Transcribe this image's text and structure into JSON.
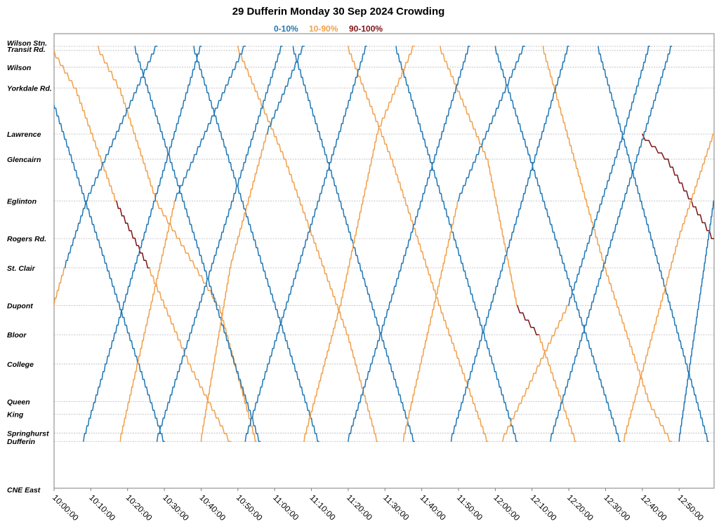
{
  "chart_data": {
    "type": "line",
    "title": "29 Dufferin Monday 30 Sep 2024 Crowding",
    "legend": [
      {
        "label": "0-10%",
        "color": "#1f77b4"
      },
      {
        "label": "10-90%",
        "color": "#f0a04b"
      },
      {
        "label": "90-100%",
        "color": "#7b1416"
      }
    ],
    "legend_placement": "top-center",
    "x_axis": {
      "range": [
        "10:00:00",
        "12:59:30"
      ],
      "ticks": [
        "10:00:00",
        "10:10:00",
        "10:20:00",
        "10:30:00",
        "10:40:00",
        "10:50:00",
        "11:00:00",
        "11:10:00",
        "11:20:00",
        "11:30:00",
        "11:40:00",
        "11:50:00",
        "12:00:00",
        "12:10:00",
        "12:20:00",
        "12:30:00",
        "12:40:00",
        "12:50:00"
      ]
    },
    "y_axis": {
      "kind": "distance along route (stops)",
      "grid": true,
      "stops": [
        {
          "name": "Wilson Stn.",
          "pos": 0.0
        },
        {
          "name": "Transit Rd.",
          "pos": 0.1
        },
        {
          "name": "Wilson",
          "pos": 0.5
        },
        {
          "name": "Yorkdale Rd.",
          "pos": 1.0
        },
        {
          "name": "Lawrence",
          "pos": 2.1
        },
        {
          "name": "Glencairn",
          "pos": 2.7
        },
        {
          "name": "Eglinton",
          "pos": 3.7
        },
        {
          "name": "Rogers Rd.",
          "pos": 4.6
        },
        {
          "name": "St. Clair",
          "pos": 5.3
        },
        {
          "name": "Dupont",
          "pos": 6.2
        },
        {
          "name": "Bloor",
          "pos": 6.9
        },
        {
          "name": "College",
          "pos": 7.6
        },
        {
          "name": "Queen",
          "pos": 8.5
        },
        {
          "name": "King",
          "pos": 8.8
        },
        {
          "name": "Springhurst",
          "pos": 9.25
        },
        {
          "name": "Dufferin",
          "pos": 9.45
        },
        {
          "name": "CNE East",
          "pos": 10.6
        }
      ]
    },
    "trips": [
      {
        "direction": "southbound",
        "segments": [
          {
            "t": "09:55:00",
            "stop": "Wilson Stn.",
            "crowd": "0-10%"
          },
          {
            "t": "10:30:00",
            "stop": "Dufferin",
            "crowd": "0-10%"
          }
        ]
      },
      {
        "direction": "southbound",
        "segments": [
          {
            "t": "10:00:00",
            "stop": "Transit Rd.",
            "crowd": "0-10%"
          },
          {
            "t": "10:06:00",
            "stop": "Yorkdale Rd.",
            "crowd": "10-90%"
          },
          {
            "t": "10:17:00",
            "stop": "Eglinton",
            "crowd": "10-90%"
          },
          {
            "t": "10:26:00",
            "stop": "St. Clair",
            "crowd": "90-100%"
          },
          {
            "t": "10:37:00",
            "stop": "College",
            "crowd": "10-90%"
          },
          {
            "t": "10:48:00",
            "stop": "Dufferin",
            "crowd": "10-90%"
          }
        ]
      },
      {
        "direction": "southbound",
        "segments": [
          {
            "t": "10:12:00",
            "stop": "Wilson Stn.",
            "crowd": "0-10%"
          },
          {
            "t": "10:18:00",
            "stop": "Yorkdale Rd.",
            "crowd": "10-90%"
          },
          {
            "t": "10:28:00",
            "stop": "Eglinton",
            "crowd": "10-90%"
          },
          {
            "t": "10:45:00",
            "stop": "Dupont",
            "crowd": "10-90%"
          },
          {
            "t": "10:55:00",
            "stop": "Dufferin",
            "crowd": "10-90%"
          }
        ]
      },
      {
        "direction": "southbound",
        "segments": [
          {
            "t": "10:22:00",
            "stop": "Wilson Stn.",
            "crowd": "0-10%"
          },
          {
            "t": "10:56:00",
            "stop": "Dufferin",
            "crowd": "0-10%"
          }
        ]
      },
      {
        "direction": "southbound",
        "segments": [
          {
            "t": "10:38:00",
            "stop": "Wilson Stn.",
            "crowd": "0-10%"
          },
          {
            "t": "11:12:00",
            "stop": "Dufferin",
            "crowd": "0-10%"
          }
        ]
      },
      {
        "direction": "southbound",
        "segments": [
          {
            "t": "10:50:00",
            "stop": "Wilson Stn.",
            "crowd": "0-10%"
          },
          {
            "t": "11:03:00",
            "stop": "Glencairn",
            "crowd": "10-90%"
          },
          {
            "t": "11:20:00",
            "stop": "Bloor",
            "crowd": "10-90%"
          },
          {
            "t": "11:28:00",
            "stop": "Dufferin",
            "crowd": "10-90%"
          }
        ]
      },
      {
        "direction": "southbound",
        "segments": [
          {
            "t": "11:05:00",
            "stop": "Wilson Stn.",
            "crowd": "0-10%"
          },
          {
            "t": "11:38:00",
            "stop": "Dufferin",
            "crowd": "0-10%"
          }
        ]
      },
      {
        "direction": "southbound",
        "segments": [
          {
            "t": "11:20:00",
            "stop": "Wilson Stn.",
            "crowd": "0-10%"
          },
          {
            "t": "11:32:00",
            "stop": "Glencairn",
            "crowd": "10-90%"
          },
          {
            "t": "11:45:00",
            "stop": "Dupont",
            "crowd": "10-90%"
          },
          {
            "t": "11:58:00",
            "stop": "Dufferin",
            "crowd": "10-90%"
          }
        ]
      },
      {
        "direction": "southbound",
        "segments": [
          {
            "t": "11:33:00",
            "stop": "Wilson Stn.",
            "crowd": "0-10%"
          },
          {
            "t": "12:06:00",
            "stop": "Dufferin",
            "crowd": "0-10%"
          }
        ]
      },
      {
        "direction": "southbound",
        "segments": [
          {
            "t": "11:45:00",
            "stop": "Wilson Stn.",
            "crowd": "0-10%"
          },
          {
            "t": "11:58:00",
            "stop": "Glencairn",
            "crowd": "10-90%"
          },
          {
            "t": "12:06:00",
            "stop": "Dupont",
            "crowd": "10-90%"
          },
          {
            "t": "12:12:00",
            "stop": "Bloor",
            "crowd": "90-100%"
          },
          {
            "t": "12:22:00",
            "stop": "Dufferin",
            "crowd": "10-90%"
          }
        ]
      },
      {
        "direction": "southbound",
        "segments": [
          {
            "t": "12:00:00",
            "stop": "Wilson Stn.",
            "crowd": "0-10%"
          },
          {
            "t": "12:34:00",
            "stop": "Dufferin",
            "crowd": "0-10%"
          }
        ]
      },
      {
        "direction": "southbound",
        "segments": [
          {
            "t": "12:13:00",
            "stop": "Wilson Stn.",
            "crowd": "0-10%"
          },
          {
            "t": "12:30:00",
            "stop": "St. Clair",
            "crowd": "10-90%"
          },
          {
            "t": "12:42:00",
            "stop": "Queen",
            "crowd": "10-90%"
          },
          {
            "t": "12:48:00",
            "stop": "Dufferin",
            "crowd": "10-90%"
          }
        ]
      },
      {
        "direction": "southbound",
        "segments": [
          {
            "t": "12:28:00",
            "stop": "Wilson Stn.",
            "crowd": "0-10%"
          },
          {
            "t": "12:58:00",
            "stop": "Dufferin",
            "crowd": "0-10%"
          }
        ]
      },
      {
        "direction": "southbound",
        "segments": [
          {
            "t": "12:40:00",
            "stop": "Lawrence",
            "crowd": "0-10%"
          },
          {
            "t": "12:47:00",
            "stop": "Glencairn",
            "crowd": "90-100%"
          },
          {
            "t": "12:59:30",
            "stop": "Rogers Rd.",
            "crowd": "90-100%"
          }
        ]
      },
      {
        "direction": "northbound",
        "segments": [
          {
            "t": "10:00:00",
            "stop": "Dupont",
            "crowd": "10-90%"
          },
          {
            "t": "10:03:00",
            "stop": "St. Clair",
            "crowd": "10-90%"
          },
          {
            "t": "10:09:00",
            "stop": "Eglinton",
            "crowd": "0-10%"
          },
          {
            "t": "10:28:00",
            "stop": "Wilson Stn.",
            "crowd": "0-10%"
          }
        ]
      },
      {
        "direction": "northbound",
        "segments": [
          {
            "t": "10:08:00",
            "stop": "Dufferin",
            "crowd": "0-10%"
          },
          {
            "t": "10:40:00",
            "stop": "Wilson Stn.",
            "crowd": "0-10%"
          }
        ]
      },
      {
        "direction": "northbound",
        "segments": [
          {
            "t": "10:18:00",
            "stop": "Dufferin",
            "crowd": "10-90%"
          },
          {
            "t": "10:33:00",
            "stop": "Eglinton",
            "crowd": "10-90%"
          },
          {
            "t": "10:52:00",
            "stop": "Wilson Stn.",
            "crowd": "0-10%"
          }
        ]
      },
      {
        "direction": "northbound",
        "segments": [
          {
            "t": "10:28:00",
            "stop": "Dufferin",
            "crowd": "0-10%"
          },
          {
            "t": "11:02:00",
            "stop": "Wilson Stn.",
            "crowd": "0-10%"
          }
        ]
      },
      {
        "direction": "northbound",
        "segments": [
          {
            "t": "10:40:00",
            "stop": "Dufferin",
            "crowd": "10-90%"
          },
          {
            "t": "10:48:00",
            "stop": "St. Clair",
            "crowd": "10-90%"
          },
          {
            "t": "10:58:00",
            "stop": "Lawrence",
            "crowd": "10-90%"
          },
          {
            "t": "11:08:00",
            "stop": "Wilson Stn.",
            "crowd": "0-10%"
          }
        ]
      },
      {
        "direction": "northbound",
        "segments": [
          {
            "t": "10:52:00",
            "stop": "Dufferin",
            "crowd": "0-10%"
          },
          {
            "t": "11:25:00",
            "stop": "Wilson Stn.",
            "crowd": "0-10%"
          }
        ]
      },
      {
        "direction": "northbound",
        "segments": [
          {
            "t": "11:08:00",
            "stop": "Dufferin",
            "crowd": "10-90%"
          },
          {
            "t": "11:18:00",
            "stop": "Dupont",
            "crowd": "10-90%"
          },
          {
            "t": "11:28:00",
            "stop": "Lawrence",
            "crowd": "10-90%"
          },
          {
            "t": "11:38:00",
            "stop": "Wilson Stn.",
            "crowd": "10-90%"
          }
        ]
      },
      {
        "direction": "northbound",
        "segments": [
          {
            "t": "11:20:00",
            "stop": "Dufferin",
            "crowd": "0-10%"
          },
          {
            "t": "11:53:00",
            "stop": "Wilson Stn.",
            "crowd": "0-10%"
          }
        ]
      },
      {
        "direction": "northbound",
        "segments": [
          {
            "t": "11:35:00",
            "stop": "Dufferin",
            "crowd": "10-90%"
          },
          {
            "t": "11:50:00",
            "stop": "Eglinton",
            "crowd": "10-90%"
          },
          {
            "t": "12:08:00",
            "stop": "Wilson Stn.",
            "crowd": "0-10%"
          }
        ]
      },
      {
        "direction": "northbound",
        "segments": [
          {
            "t": "11:48:00",
            "stop": "Dufferin",
            "crowd": "0-10%"
          },
          {
            "t": "12:20:00",
            "stop": "Wilson Stn.",
            "crowd": "0-10%"
          }
        ]
      },
      {
        "direction": "northbound",
        "segments": [
          {
            "t": "12:02:00",
            "stop": "Dufferin",
            "crowd": "10-90%"
          },
          {
            "t": "12:20:00",
            "stop": "Dupont",
            "crowd": "10-90%"
          },
          {
            "t": "12:35:00",
            "stop": "Lawrence",
            "crowd": "0-10%"
          },
          {
            "t": "12:42:00",
            "stop": "Wilson Stn.",
            "crowd": "0-10%"
          }
        ]
      },
      {
        "direction": "northbound",
        "segments": [
          {
            "t": "12:15:00",
            "stop": "Dufferin",
            "crowd": "0-10%"
          },
          {
            "t": "12:48:00",
            "stop": "Wilson Stn.",
            "crowd": "0-10%"
          }
        ]
      },
      {
        "direction": "northbound",
        "segments": [
          {
            "t": "12:35:00",
            "stop": "Dufferin",
            "crowd": "10-90%"
          },
          {
            "t": "12:50:00",
            "stop": "Rogers Rd.",
            "crowd": "10-90%"
          },
          {
            "t": "12:59:30",
            "stop": "Lawrence",
            "crowd": "10-90%"
          }
        ]
      },
      {
        "direction": "northbound",
        "segments": [
          {
            "t": "12:50:00",
            "stop": "Dufferin",
            "crowd": "0-10%"
          },
          {
            "t": "12:59:30",
            "stop": "Eglinton",
            "crowd": "0-10%"
          }
        ]
      }
    ]
  }
}
